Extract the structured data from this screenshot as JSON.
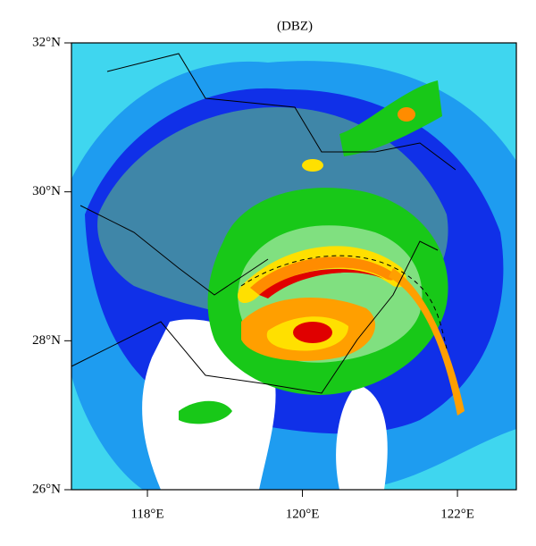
{
  "chart_data": {
    "type": "map",
    "title": "(DBZ)",
    "xlim": [
      117.02,
      122.76
    ],
    "ylim": [
      26,
      32
    ],
    "xticks": [
      {
        "value": 118,
        "label": "118°E"
      },
      {
        "value": 120,
        "label": "120°E"
      },
      {
        "value": 122,
        "label": "122°E"
      }
    ],
    "yticks": [
      {
        "value": 26,
        "label": "26°N"
      },
      {
        "value": 28,
        "label": "28°N"
      },
      {
        "value": 30,
        "label": "30°N"
      },
      {
        "value": 32,
        "label": "32°N"
      }
    ]
  }
}
